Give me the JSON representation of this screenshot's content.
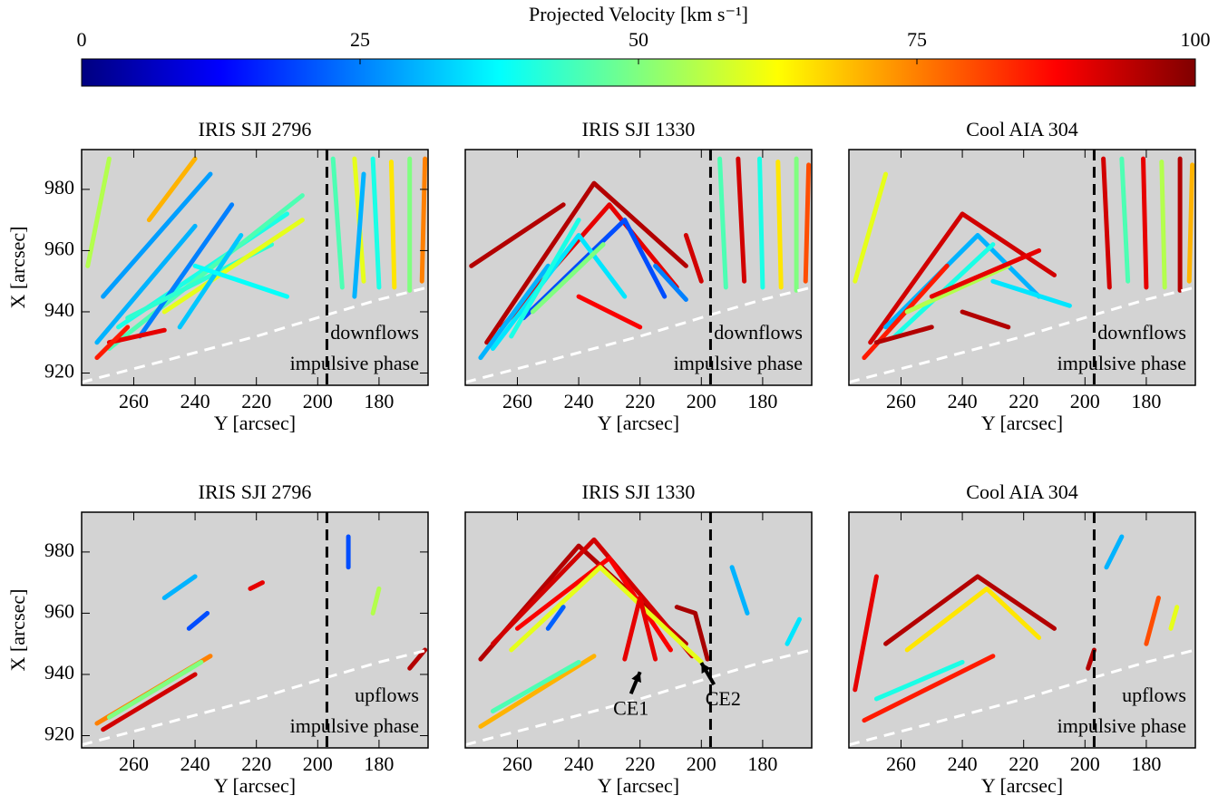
{
  "chart_data": [
    {
      "type": "colorbar",
      "title": "Projected Velocity [km s⁻¹]",
      "xlim": [
        0,
        100
      ],
      "xticks": [
        0,
        25,
        50,
        75,
        100
      ],
      "color_stops": [
        {
          "value": 0,
          "color": "#000080"
        },
        {
          "value": 12.5,
          "color": "#0000ff"
        },
        {
          "value": 37.5,
          "color": "#00ffff"
        },
        {
          "value": 62.5,
          "color": "#ffff00"
        },
        {
          "value": 87.5,
          "color": "#ff0000"
        },
        {
          "value": 100,
          "color": "#800000"
        }
      ]
    },
    {
      "type": "streak",
      "title": "IRIS SJI 2796",
      "xlabel": "Y [arcsec]",
      "ylabel": "X [arcsec]",
      "xlim": [
        277,
        164
      ],
      "ylim": [
        916,
        993
      ],
      "xticks": [
        260,
        240,
        220,
        200,
        180
      ],
      "yticks": [
        920,
        940,
        960,
        980
      ],
      "vline": 197,
      "limb": {
        "x": [
          277,
          250,
          220,
          197,
          180,
          164
        ],
        "y": [
          917,
          924,
          932,
          939,
          944,
          948
        ]
      },
      "labels": [
        "downflows",
        "impulsive phase"
      ],
      "tracks": [
        {
          "x": [
            272,
            240
          ],
          "y": [
            930,
            968
          ],
          "v": 30
        },
        {
          "x": [
            265,
            210
          ],
          "y": [
            935,
            972
          ],
          "v": 40
        },
        {
          "x": [
            268,
            205
          ],
          "y": [
            928,
            978
          ],
          "v": 45
        },
        {
          "x": [
            258,
            228
          ],
          "y": [
            932,
            975
          ],
          "v": 25
        },
        {
          "x": [
            270,
            235
          ],
          "y": [
            945,
            985
          ],
          "v": 28
        },
        {
          "x": [
            262,
            215
          ],
          "y": [
            938,
            962
          ],
          "v": 42
        },
        {
          "x": [
            250,
            205
          ],
          "y": [
            940,
            970
          ],
          "v": 60
        },
        {
          "x": [
            255,
            240
          ],
          "y": [
            970,
            990
          ],
          "v": 70
        },
        {
          "x": [
            275,
            268
          ],
          "y": [
            955,
            990
          ],
          "v": 55
        },
        {
          "x": [
            245,
            225
          ],
          "y": [
            935,
            965
          ],
          "v": 32
        },
        {
          "x": [
            240,
            210
          ],
          "y": [
            955,
            945
          ],
          "v": 38
        },
        {
          "x": [
            268,
            250
          ],
          "y": [
            930,
            934
          ],
          "v": 90
        },
        {
          "x": [
            272,
            262
          ],
          "y": [
            925,
            935
          ],
          "v": 85
        },
        {
          "x": [
            192,
            195
          ],
          "y": [
            948,
            990
          ],
          "v": 45
        },
        {
          "x": [
            185,
            188
          ],
          "y": [
            950,
            990
          ],
          "v": 60
        },
        {
          "x": [
            180,
            182
          ],
          "y": [
            948,
            990
          ],
          "v": 40
        },
        {
          "x": [
            175,
            176
          ],
          "y": [
            948,
            989
          ],
          "v": 65
        },
        {
          "x": [
            170,
            170
          ],
          "y": [
            947,
            990
          ],
          "v": 50
        },
        {
          "x": [
            166,
            165
          ],
          "y": [
            950,
            990
          ],
          "v": 75
        },
        {
          "x": [
            188,
            185
          ],
          "y": [
            945,
            985
          ],
          "v": 30
        }
      ]
    },
    {
      "type": "streak",
      "title": "IRIS SJI 1330",
      "xlabel": "Y [arcsec]",
      "xlim": [
        277,
        164
      ],
      "ylim": [
        916,
        993
      ],
      "xticks": [
        260,
        240,
        220,
        200,
        180
      ],
      "vline": 197,
      "limb": {
        "x": [
          277,
          250,
          220,
          197,
          180,
          164
        ],
        "y": [
          917,
          924,
          932,
          939,
          944,
          948
        ]
      },
      "labels": [
        "downflows",
        "impulsive phase"
      ],
      "tracks": [
        {
          "x": [
            270,
            235,
            205
          ],
          "y": [
            930,
            982,
            955
          ],
          "v": 95
        },
        {
          "x": [
            265,
            230,
            208
          ],
          "y": [
            935,
            975,
            948
          ],
          "v": 90
        },
        {
          "x": [
            258,
            225,
            212
          ],
          "y": [
            938,
            970,
            945
          ],
          "v": 20
        },
        {
          "x": [
            268,
            240,
            225
          ],
          "y": [
            928,
            965,
            945
          ],
          "v": 35
        },
        {
          "x": [
            272,
            250
          ],
          "y": [
            925,
            955
          ],
          "v": 30
        },
        {
          "x": [
            262,
            240
          ],
          "y": [
            932,
            970
          ],
          "v": 40
        },
        {
          "x": [
            255,
            232
          ],
          "y": [
            940,
            962
          ],
          "v": 50
        },
        {
          "x": [
            275,
            245
          ],
          "y": [
            955,
            975
          ],
          "v": 95
        },
        {
          "x": [
            215,
            205
          ],
          "y": [
            955,
            944
          ],
          "v": 25
        },
        {
          "x": [
            205,
            200
          ],
          "y": [
            965,
            950
          ],
          "v": 92
        },
        {
          "x": [
            240,
            220
          ],
          "y": [
            945,
            935
          ],
          "v": 88
        },
        {
          "x": [
            192,
            194
          ],
          "y": [
            948,
            990
          ],
          "v": 45
        },
        {
          "x": [
            186,
            188
          ],
          "y": [
            950,
            990
          ],
          "v": 92
        },
        {
          "x": [
            180,
            181
          ],
          "y": [
            948,
            990
          ],
          "v": 40
        },
        {
          "x": [
            174,
            175
          ],
          "y": [
            948,
            989
          ],
          "v": 65
        },
        {
          "x": [
            169,
            169
          ],
          "y": [
            947,
            990
          ],
          "v": 50
        },
        {
          "x": [
            166,
            165
          ],
          "y": [
            950,
            988
          ],
          "v": 80
        }
      ]
    },
    {
      "type": "streak",
      "title": "Cool AIA 304",
      "xlabel": "Y [arcsec]",
      "xlim": [
        277,
        164
      ],
      "ylim": [
        916,
        993
      ],
      "xticks": [
        260,
        240,
        220,
        200,
        180
      ],
      "vline": 197,
      "limb": {
        "x": [
          277,
          250,
          220,
          197,
          180,
          164
        ],
        "y": [
          917,
          924,
          932,
          939,
          944,
          948
        ]
      },
      "labels": [
        "downflows",
        "impulsive phase"
      ],
      "tracks": [
        {
          "x": [
            270,
            240,
            210
          ],
          "y": [
            930,
            972,
            952
          ],
          "v": 92
        },
        {
          "x": [
            265,
            235,
            215
          ],
          "y": [
            935,
            965,
            945
          ],
          "v": 30
        },
        {
          "x": [
            272,
            245
          ],
          "y": [
            925,
            955
          ],
          "v": 85
        },
        {
          "x": [
            262,
            230
          ],
          "y": [
            932,
            962
          ],
          "v": 40
        },
        {
          "x": [
            258,
            225
          ],
          "y": [
            940,
            955
          ],
          "v": 55
        },
        {
          "x": [
            250,
            215
          ],
          "y": [
            945,
            960
          ],
          "v": 90
        },
        {
          "x": [
            268,
            250
          ],
          "y": [
            930,
            935
          ],
          "v": 95
        },
        {
          "x": [
            275,
            265
          ],
          "y": [
            950,
            985
          ],
          "v": 60
        },
        {
          "x": [
            240,
            225
          ],
          "y": [
            940,
            935
          ],
          "v": 95
        },
        {
          "x": [
            230,
            205
          ],
          "y": [
            950,
            942
          ],
          "v": 35
        },
        {
          "x": [
            192,
            194
          ],
          "y": [
            948,
            990
          ],
          "v": 92
        },
        {
          "x": [
            186,
            188
          ],
          "y": [
            950,
            990
          ],
          "v": 45
        },
        {
          "x": [
            180,
            181
          ],
          "y": [
            948,
            990
          ],
          "v": 90
        },
        {
          "x": [
            174,
            175
          ],
          "y": [
            948,
            989
          ],
          "v": 55
        },
        {
          "x": [
            169,
            169
          ],
          "y": [
            947,
            990
          ],
          "v": 95
        },
        {
          "x": [
            166,
            165
          ],
          "y": [
            950,
            988
          ],
          "v": 70
        }
      ]
    },
    {
      "type": "streak",
      "title": "IRIS SJI 2796",
      "xlabel": "Y [arcsec]",
      "ylabel": "X [arcsec]",
      "xlim": [
        277,
        164
      ],
      "ylim": [
        916,
        993
      ],
      "xticks": [
        260,
        240,
        220,
        200,
        180
      ],
      "yticks": [
        920,
        940,
        960,
        980
      ],
      "vline": 197,
      "limb": {
        "x": [
          277,
          250,
          220,
          197,
          180,
          164
        ],
        "y": [
          917,
          924,
          932,
          939,
          944,
          948
        ]
      },
      "labels": [
        "upflows",
        "impulsive phase"
      ],
      "tracks": [
        {
          "x": [
            272,
            235
          ],
          "y": [
            924,
            946
          ],
          "v": 75
        },
        {
          "x": [
            268,
            238
          ],
          "y": [
            926,
            944
          ],
          "v": 50
        },
        {
          "x": [
            270,
            240
          ],
          "y": [
            922,
            940
          ],
          "v": 92
        },
        {
          "x": [
            242,
            236
          ],
          "y": [
            955,
            960
          ],
          "v": 20
        },
        {
          "x": [
            250,
            240
          ],
          "y": [
            965,
            972
          ],
          "v": 30
        },
        {
          "x": [
            222,
            218
          ],
          "y": [
            968,
            970
          ],
          "v": 90
        },
        {
          "x": [
            170,
            165
          ],
          "y": [
            942,
            948
          ],
          "v": 95
        },
        {
          "x": [
            190,
            190
          ],
          "y": [
            975,
            985
          ],
          "v": 20
        },
        {
          "x": [
            182,
            180
          ],
          "y": [
            960,
            968
          ],
          "v": 55
        }
      ]
    },
    {
      "type": "streak",
      "title": "IRIS SJI 1330",
      "xlabel": "Y [arcsec]",
      "xlim": [
        277,
        164
      ],
      "ylim": [
        916,
        993
      ],
      "xticks": [
        260,
        240,
        220,
        200,
        180
      ],
      "vline": 197,
      "limb": {
        "x": [
          277,
          250,
          220,
          197,
          180,
          164
        ],
        "y": [
          917,
          924,
          932,
          939,
          944,
          948
        ]
      },
      "arrows": [
        {
          "text": "CE1",
          "x": 220,
          "y": 942
        },
        {
          "text": "CE2",
          "x": 200,
          "y": 945
        }
      ],
      "tracks": [
        {
          "x": [
            272,
            240,
            205
          ],
          "y": [
            945,
            982,
            950
          ],
          "v": 95
        },
        {
          "x": [
            268,
            235,
            203
          ],
          "y": [
            950,
            984,
            946
          ],
          "v": 92
        },
        {
          "x": [
            260,
            230,
            210
          ],
          "y": [
            955,
            978,
            948
          ],
          "v": 88
        },
        {
          "x": [
            262,
            233,
            200
          ],
          "y": [
            948,
            975,
            944
          ],
          "v": 60
        },
        {
          "x": [
            225,
            220,
            215
          ],
          "y": [
            945,
            965,
            945
          ],
          "v": 90
        },
        {
          "x": [
            208,
            202,
            198
          ],
          "y": [
            962,
            960,
            945
          ],
          "v": 96
        },
        {
          "x": [
            272,
            235
          ],
          "y": [
            923,
            946
          ],
          "v": 70
        },
        {
          "x": [
            268,
            240
          ],
          "y": [
            928,
            944
          ],
          "v": 45
        },
        {
          "x": [
            250,
            245
          ],
          "y": [
            955,
            962
          ],
          "v": 22
        },
        {
          "x": [
            190,
            185
          ],
          "y": [
            975,
            960
          ],
          "v": 30
        },
        {
          "x": [
            172,
            168
          ],
          "y": [
            950,
            958
          ],
          "v": 35
        }
      ]
    },
    {
      "type": "streak",
      "title": "Cool AIA 304",
      "xlabel": "Y [arcsec]",
      "xlim": [
        277,
        164
      ],
      "ylim": [
        916,
        993
      ],
      "xticks": [
        260,
        240,
        220,
        200,
        180
      ],
      "vline": 197,
      "limb": {
        "x": [
          277,
          250,
          220,
          197,
          180,
          164
        ],
        "y": [
          917,
          924,
          932,
          939,
          944,
          948
        ]
      },
      "labels": [
        "upflows",
        "impulsive phase"
      ],
      "tracks": [
        {
          "x": [
            265,
            235,
            210
          ],
          "y": [
            950,
            972,
            955
          ],
          "v": 95
        },
        {
          "x": [
            258,
            232,
            215
          ],
          "y": [
            948,
            968,
            952
          ],
          "v": 65
        },
        {
          "x": [
            272,
            230
          ],
          "y": [
            925,
            946
          ],
          "v": 85
        },
        {
          "x": [
            268,
            240
          ],
          "y": [
            932,
            944
          ],
          "v": 40
        },
        {
          "x": [
            275,
            268
          ],
          "y": [
            935,
            972
          ],
          "v": 90
        },
        {
          "x": [
            193,
            188
          ],
          "y": [
            975,
            985
          ],
          "v": 30
        },
        {
          "x": [
            180,
            176
          ],
          "y": [
            950,
            965
          ],
          "v": 80
        },
        {
          "x": [
            172,
            170
          ],
          "y": [
            955,
            962
          ],
          "v": 60
        },
        {
          "x": [
            199,
            197
          ],
          "y": [
            942,
            948
          ],
          "v": 95
        }
      ]
    }
  ]
}
